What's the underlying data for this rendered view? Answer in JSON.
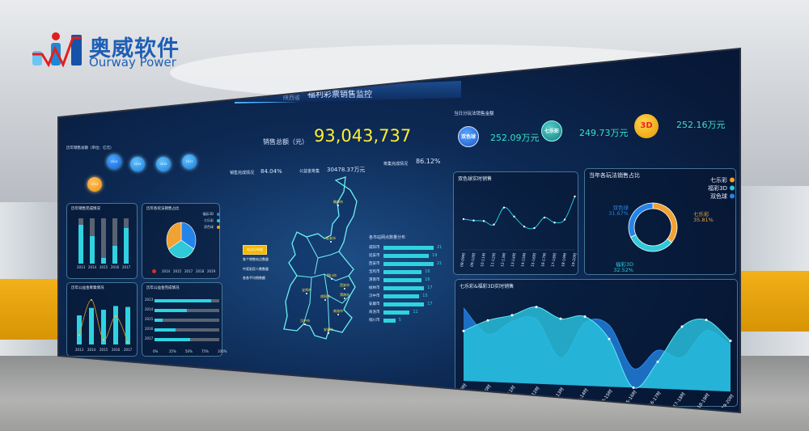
{
  "logo": {
    "cn": "奥威软件",
    "en": "Ourway Power"
  },
  "header": {
    "region": "陕西省",
    "title": "福利彩票销售监控"
  },
  "sales_total": {
    "label": "销售总额（元）",
    "value": "93,043,737"
  },
  "kpis": [
    {
      "label": "销售完成情况",
      "value": "84.04%"
    },
    {
      "label": "公益金筹集",
      "value": "30478.37万元"
    },
    {
      "label": "筹集完成情况",
      "value": "86.12%"
    }
  ],
  "history": {
    "title": "历年销售总额（单位：亿元）",
    "bubbles": [
      "2013",
      "2014",
      "2015",
      "2016",
      "2017"
    ]
  },
  "panel_bar": {
    "title": "历年销售完成情况",
    "years": [
      "2013",
      "2014",
      "2015",
      "2016",
      "2017"
    ],
    "fill": [
      0.85,
      0.6,
      0.12,
      0.4,
      0.78
    ],
    "colors": {
      "fill": "#2fd3e0",
      "track": "#5b6370"
    }
  },
  "panel_pie": {
    "title": "历年各玩法销售占比",
    "legend": [
      "福彩3D",
      "七乐彩",
      "双色球"
    ],
    "values": [
      33.3,
      33.3,
      33.4
    ],
    "colors": [
      "#2584e8",
      "#2fc9d9",
      "#f0a232"
    ],
    "timeline": [
      "2014",
      "2015",
      "2017",
      "2018",
      "2019"
    ]
  },
  "panel_combo": {
    "title": "历年公益金筹集情况",
    "years": [
      "2013",
      "2014",
      "2015",
      "2016",
      "2017"
    ],
    "bars": [
      0.62,
      0.78,
      0.74,
      0.82,
      0.8
    ],
    "line": [
      0.2,
      0.95,
      0.1,
      0.6,
      0.05
    ]
  },
  "panel_progress": {
    "title": "历年公益金完成情况",
    "years": [
      "2013",
      "2014",
      "2015",
      "2016",
      "2017"
    ],
    "fill": [
      0.88,
      0.5,
      0.12,
      0.32,
      0.55
    ],
    "axis": [
      "0%",
      "25%",
      "50%",
      "75%",
      "100%"
    ]
  },
  "map": {
    "cities": [
      "榆林市",
      "延安市",
      "铜川市",
      "渭南市",
      "咸阳市",
      "西安市",
      "宝鸡市",
      "汉中市",
      "安康市",
      "商洛市"
    ],
    "legend": [
      "站点分布图",
      "各个销售站点数量",
      "中奖彩民人数数量",
      "各各平均销售额"
    ]
  },
  "ranking": {
    "title": "各市站网点数量分布",
    "cities": [
      "咸阳市",
      "延安市",
      "西安市",
      "宝鸡市",
      "渭南市",
      "榆林市",
      "汉中市",
      "安康市",
      "商洛市",
      "铜川市"
    ],
    "values": [
      21,
      19,
      21,
      16,
      16,
      17,
      15,
      17,
      11,
      5
    ],
    "color": "#2fd3e0"
  },
  "today": {
    "title": "当日分玩法销售金额",
    "items": [
      {
        "name": "双色球",
        "value": "252.09万元",
        "color": "#1f6fe0"
      },
      {
        "name": "七乐彩",
        "value": "249.73万元",
        "color": "#1fa0a0"
      },
      {
        "name": "3D",
        "value": "252.16万元",
        "color": "#f0a810"
      }
    ]
  },
  "chart_data": [
    {
      "type": "line",
      "title": "双色球实时销售",
      "categories": [
        "08-09时",
        "09-10时",
        "10-11时",
        "11-12时",
        "12-13时",
        "13-14时",
        "14-15时",
        "15-16时",
        "16-17时",
        "17-18时",
        "18-19时",
        "19-20时"
      ],
      "values": [
        55,
        52,
        51,
        44,
        78,
        60,
        40,
        37,
        58,
        48,
        54,
        100
      ]
    },
    {
      "type": "pie",
      "title": "当年各玩法销售占比",
      "categories": [
        "七乐彩",
        "福彩3D",
        "双色球"
      ],
      "values": [
        35.81,
        32.52,
        31.67
      ],
      "labels": [
        "35.81%",
        "32.52%",
        "31.67%"
      ],
      "colors": [
        "#f0a232",
        "#2fc9d9",
        "#2584e8"
      ],
      "legend": "top-right"
    },
    {
      "type": "area",
      "title": "七乐彩&福彩3D实时销售",
      "categories": [
        "08-09时",
        "09-10时",
        "10-11时",
        "11-12时",
        "12-13时",
        "13-14时",
        "14-15时",
        "15-16时",
        "16-17时",
        "17-18时",
        "18-19时",
        "19-20时"
      ],
      "series": [
        {
          "values": [
            95,
            62,
            80,
            84,
            35,
            82,
            80,
            25,
            50,
            42,
            78,
            60
          ],
          "color": "#1f78d0"
        },
        {
          "values": [
            65,
            80,
            88,
            100,
            86,
            90,
            62,
            0,
            35,
            82,
            92,
            66
          ],
          "color": "#28c0dc"
        }
      ]
    }
  ]
}
